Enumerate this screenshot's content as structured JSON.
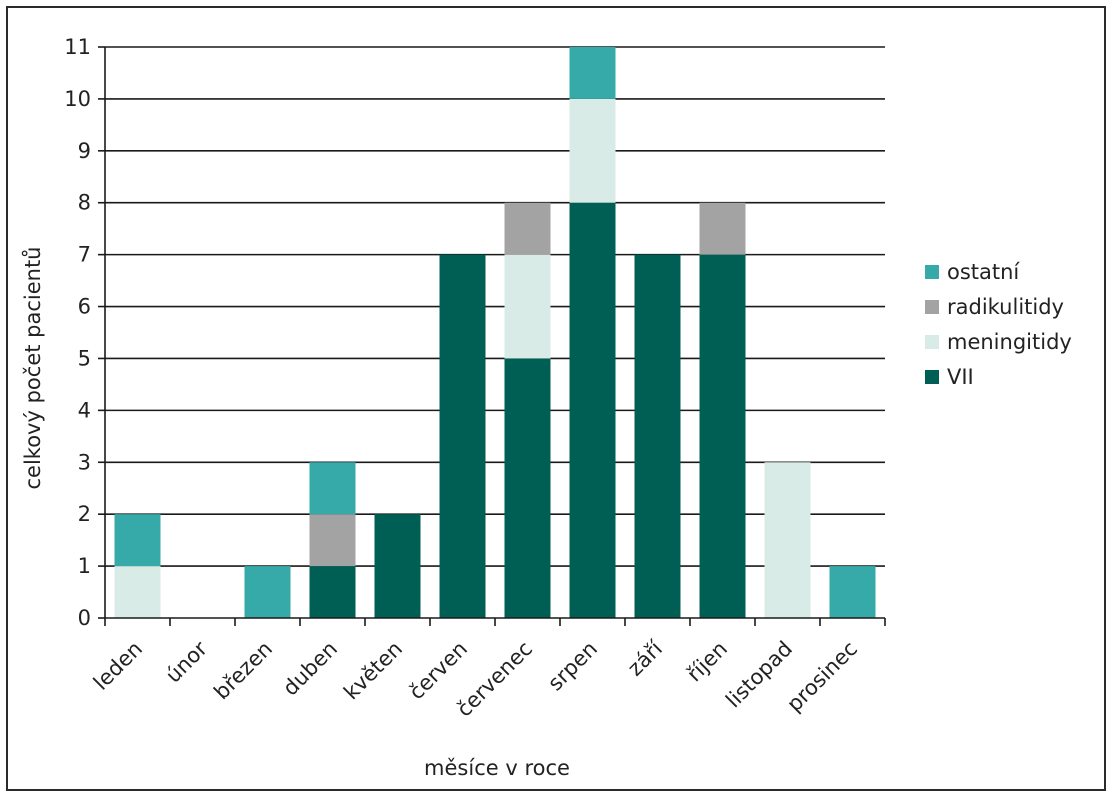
{
  "chart_data": {
    "type": "bar",
    "stacked": true,
    "xlabel": "měsíce v roce",
    "ylabel": "celkový počet pacientů",
    "ylim": [
      0,
      11
    ],
    "yticks": [
      0,
      1,
      2,
      3,
      4,
      5,
      6,
      7,
      8,
      9,
      10,
      11
    ],
    "grid": "horizontal",
    "legend_position": "right",
    "categories": [
      "leden",
      "únor",
      "březen",
      "duben",
      "květen",
      "červen",
      "červenec",
      "srpen",
      "září",
      "říjen",
      "listopad",
      "prosinec"
    ],
    "series": [
      {
        "name": "VII",
        "color": "#005f55",
        "values": [
          0,
          0,
          0,
          1,
          2,
          7,
          5,
          8,
          7,
          7,
          0,
          0
        ]
      },
      {
        "name": "meningitidy",
        "color": "#d8ebe6",
        "values": [
          1,
          0,
          0,
          0,
          0,
          0,
          2,
          2,
          0,
          0,
          3,
          0
        ]
      },
      {
        "name": "radikulitidy",
        "color": "#a3a3a3",
        "values": [
          0,
          0,
          0,
          1,
          0,
          0,
          1,
          0,
          0,
          1,
          0,
          0
        ]
      },
      {
        "name": "ostatní",
        "color": "#36a9a9",
        "values": [
          1,
          0,
          1,
          1,
          0,
          0,
          0,
          1,
          0,
          0,
          0,
          1
        ]
      }
    ],
    "legend_order": [
      "ostatní",
      "radikulitidy",
      "meningitidy",
      "VII"
    ]
  }
}
